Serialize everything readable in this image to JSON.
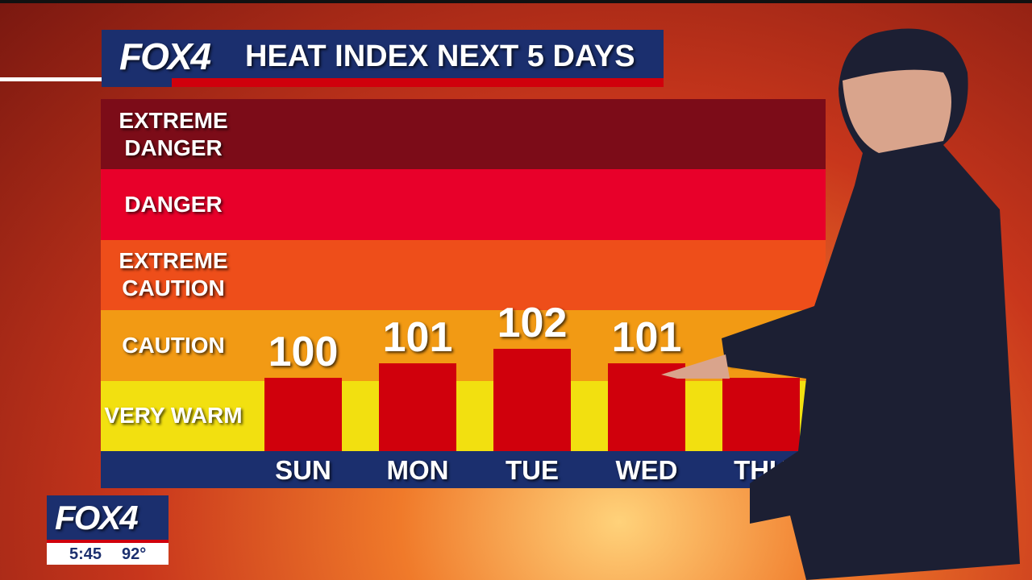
{
  "logo": "FOX4",
  "chart_data": {
    "type": "bar",
    "title": "HEAT INDEX NEXT 5 DAYS",
    "categories": [
      "SUN",
      "MON",
      "TUE",
      "WED",
      "THU"
    ],
    "values": [
      100,
      101,
      102,
      101,
      100
    ],
    "color": "#d0000c",
    "ylim": [
      95,
      119
    ],
    "bands": [
      {
        "label": "EXTREME DANGER",
        "color": "#7c0c18"
      },
      {
        "label": "DANGER",
        "color": "#e8002a"
      },
      {
        "label": "EXTREME CAUTION",
        "color": "#ee4e1a"
      },
      {
        "label": "CAUTION",
        "color": "#f29a14"
      },
      {
        "label": "VERY WARM",
        "color": "#f2e010"
      }
    ]
  },
  "bug": {
    "logo": "FOX4",
    "time": "5:45",
    "temp": "92°"
  }
}
